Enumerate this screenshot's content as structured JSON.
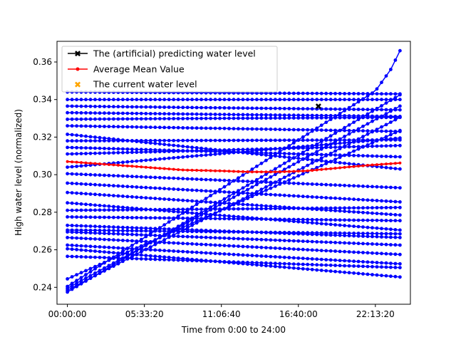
{
  "chart_data": {
    "type": "line",
    "title": "",
    "xlabel": "Time from 0:00 to 24:00",
    "ylabel": "High water level (normalized)",
    "x_range_seconds": [
      -2700,
      89100
    ],
    "x_ticks": [
      {
        "value": 0,
        "label": "00:00:00"
      },
      {
        "value": 20000,
        "label": "05:33:20"
      },
      {
        "value": 40000,
        "label": "11:06:40"
      },
      {
        "value": 60000,
        "label": "16:40:00"
      },
      {
        "value": 80000,
        "label": "22:13:20"
      }
    ],
    "ylim": [
      0.231,
      0.371
    ],
    "y_ticks": [
      0.24,
      0.26,
      0.28,
      0.3,
      0.32,
      0.34,
      0.36
    ],
    "y_tick_labels": [
      "0.24",
      "0.26",
      "0.28",
      "0.30",
      "0.32",
      "0.34",
      "0.36"
    ],
    "grid": false,
    "legend_placement": "top-left",
    "legend": [
      {
        "label": "The (artificial) predicting water level",
        "marker": "X",
        "color": "#000000",
        "style": "line"
      },
      {
        "label": "Average Mean Value",
        "marker": "dot",
        "color": "#ff0000",
        "style": "line"
      },
      {
        "label": "The current water level",
        "marker": "X",
        "color": "#ffa500",
        "style": "marker"
      }
    ],
    "series": [
      {
        "name": "Average Mean Value",
        "color": "#ff0000",
        "x": [
          0,
          10000,
          20000,
          30000,
          40000,
          47000,
          55000,
          62000,
          70000,
          78000,
          86400
        ],
        "values": [
          0.307,
          0.3055,
          0.304,
          0.3025,
          0.302,
          0.3015,
          0.3015,
          0.302,
          0.3035,
          0.305,
          0.3062
        ]
      },
      {
        "name": "The (artificial) predicting water level",
        "color": "#000000",
        "x": [
          65200
        ],
        "values": [
          0.3365
        ]
      },
      {
        "color": "#0000ff",
        "x": [
          0,
          86400
        ],
        "values": [
          0.344,
          0.343
        ]
      },
      {
        "color": "#0000ff",
        "x": [
          0,
          86400
        ],
        "values": [
          0.34,
          0.34
        ]
      },
      {
        "color": "#0000ff",
        "x": [
          0,
          86400
        ],
        "values": [
          0.3365,
          0.3345
        ]
      },
      {
        "color": "#0000ff",
        "x": [
          0,
          86400
        ],
        "values": [
          0.333,
          0.331
        ]
      },
      {
        "color": "#0000ff",
        "x": [
          0,
          86400
        ],
        "values": [
          0.3295,
          0.3305
        ]
      },
      {
        "color": "#0000ff",
        "x": [
          0,
          86400
        ],
        "values": [
          0.326,
          0.323
        ]
      },
      {
        "color": "#0000ff",
        "x": [
          0,
          86400
        ],
        "values": [
          0.318,
          0.3185
        ]
      },
      {
        "color": "#0000ff",
        "x": [
          0,
          86400
        ],
        "values": [
          0.3145,
          0.3095
        ]
      },
      {
        "color": "#0000ff",
        "x": [
          0,
          86400
        ],
        "values": [
          0.311,
          0.3155
        ]
      },
      {
        "color": "#0000ff",
        "x": [
          0,
          86400
        ],
        "values": [
          0.304,
          0.3195
        ]
      },
      {
        "color": "#0000ff",
        "x": [
          0,
          86400
        ],
        "values": [
          0.3005,
          0.293
        ]
      },
      {
        "color": "#0000ff",
        "x": [
          0,
          86400
        ],
        "values": [
          0.2955,
          0.2855
        ]
      },
      {
        "color": "#0000ff",
        "x": [
          0,
          86400
        ],
        "values": [
          0.285,
          0.2705
        ]
      },
      {
        "color": "#0000ff",
        "x": [
          0,
          86400
        ],
        "values": [
          0.281,
          0.2825
        ]
      },
      {
        "color": "#0000ff",
        "x": [
          0,
          86400
        ],
        "values": [
          0.2775,
          0.2755
        ]
      },
      {
        "color": "#0000ff",
        "x": [
          0,
          86400
        ],
        "values": [
          0.273,
          0.2665
        ]
      },
      {
        "color": "#0000ff",
        "x": [
          0,
          86400
        ],
        "values": [
          0.2695,
          0.2625
        ]
      },
      {
        "color": "#0000ff",
        "x": [
          0,
          86400
        ],
        "values": [
          0.2665,
          0.2575
        ]
      },
      {
        "color": "#0000ff",
        "x": [
          0,
          86400
        ],
        "values": [
          0.2625,
          0.2525
        ]
      },
      {
        "color": "#0000ff",
        "x": [
          0,
          86400
        ],
        "values": [
          0.2605,
          0.2455
        ]
      },
      {
        "color": "#0000ff",
        "x": [
          0,
          86400
        ],
        "values": [
          0.3215,
          0.303
        ]
      },
      {
        "color": "#0000ff",
        "x": [
          0,
          86400
        ],
        "values": [
          0.2905,
          0.2785
        ]
      },
      {
        "color": "#0000ff",
        "x": [
          0,
          86400
        ],
        "values": [
          0.2705,
          0.2685
        ]
      },
      {
        "color": "#0000ff",
        "x": [
          0,
          86400
        ],
        "values": [
          0.2565,
          0.2505
        ]
      },
      {
        "color": "#0000ff",
        "x": [
          0,
          80000,
          84000,
          86400
        ],
        "values": [
          0.2405,
          0.3445,
          0.356,
          0.366
        ]
      },
      {
        "color": "#0000ff",
        "x": [
          0,
          86400
        ],
        "values": [
          0.2375,
          0.3425
        ]
      },
      {
        "color": "#0000ff",
        "x": [
          0,
          86400
        ],
        "values": [
          0.2395,
          0.3365
        ]
      },
      {
        "color": "#0000ff",
        "x": [
          0,
          86400
        ],
        "values": [
          0.2385,
          0.3305
        ]
      },
      {
        "color": "#0000ff",
        "x": [
          0,
          86400
        ],
        "values": [
          0.2445,
          0.3235
        ]
      }
    ]
  }
}
